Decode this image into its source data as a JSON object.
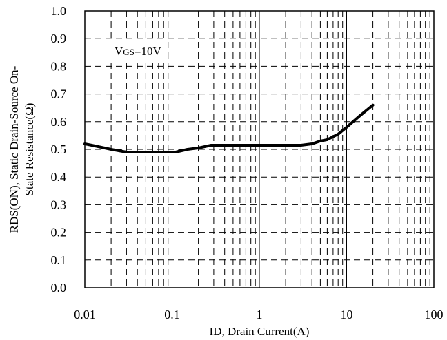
{
  "chart_data": {
    "type": "line",
    "x_scale": "log",
    "y_scale": "linear",
    "xlim": [
      0.01,
      100
    ],
    "ylim": [
      0.0,
      1.0
    ],
    "x_ticks": [
      0.01,
      0.1,
      1,
      10,
      100
    ],
    "x_tick_labels": [
      "0.01",
      "0.1",
      "1",
      "10",
      "100"
    ],
    "y_ticks": [
      0.0,
      0.1,
      0.2,
      0.3,
      0.4,
      0.5,
      0.6,
      0.7,
      0.8,
      0.9,
      1.0
    ],
    "y_tick_labels": [
      "0.0",
      "0.1",
      "0.2",
      "0.3",
      "0.4",
      "0.5",
      "0.6",
      "0.7",
      "0.8",
      "0.9",
      "1.0"
    ],
    "grid": "on",
    "xlabel": "ID, Drain Current(A)",
    "ylabel_line1": "RDS(ON), Static Drain-Source On-",
    "ylabel_line2": "State Resistance(Ω)",
    "annotation_main": "V",
    "annotation_sub": "GS",
    "annotation_rest": "=10V",
    "series": [
      {
        "x": [
          0.01,
          0.012,
          0.02,
          0.03,
          0.05,
          0.1,
          0.11,
          0.15,
          0.2,
          0.28,
          0.4,
          0.6,
          1,
          2,
          3,
          4,
          5,
          6,
          8,
          10,
          14,
          20
        ],
        "y": [
          0.52,
          0.515,
          0.5,
          0.49,
          0.49,
          0.49,
          0.49,
          0.5,
          0.505,
          0.515,
          0.515,
          0.515,
          0.515,
          0.515,
          0.515,
          0.52,
          0.53,
          0.535,
          0.555,
          0.58,
          0.62,
          0.66
        ]
      }
    ]
  }
}
